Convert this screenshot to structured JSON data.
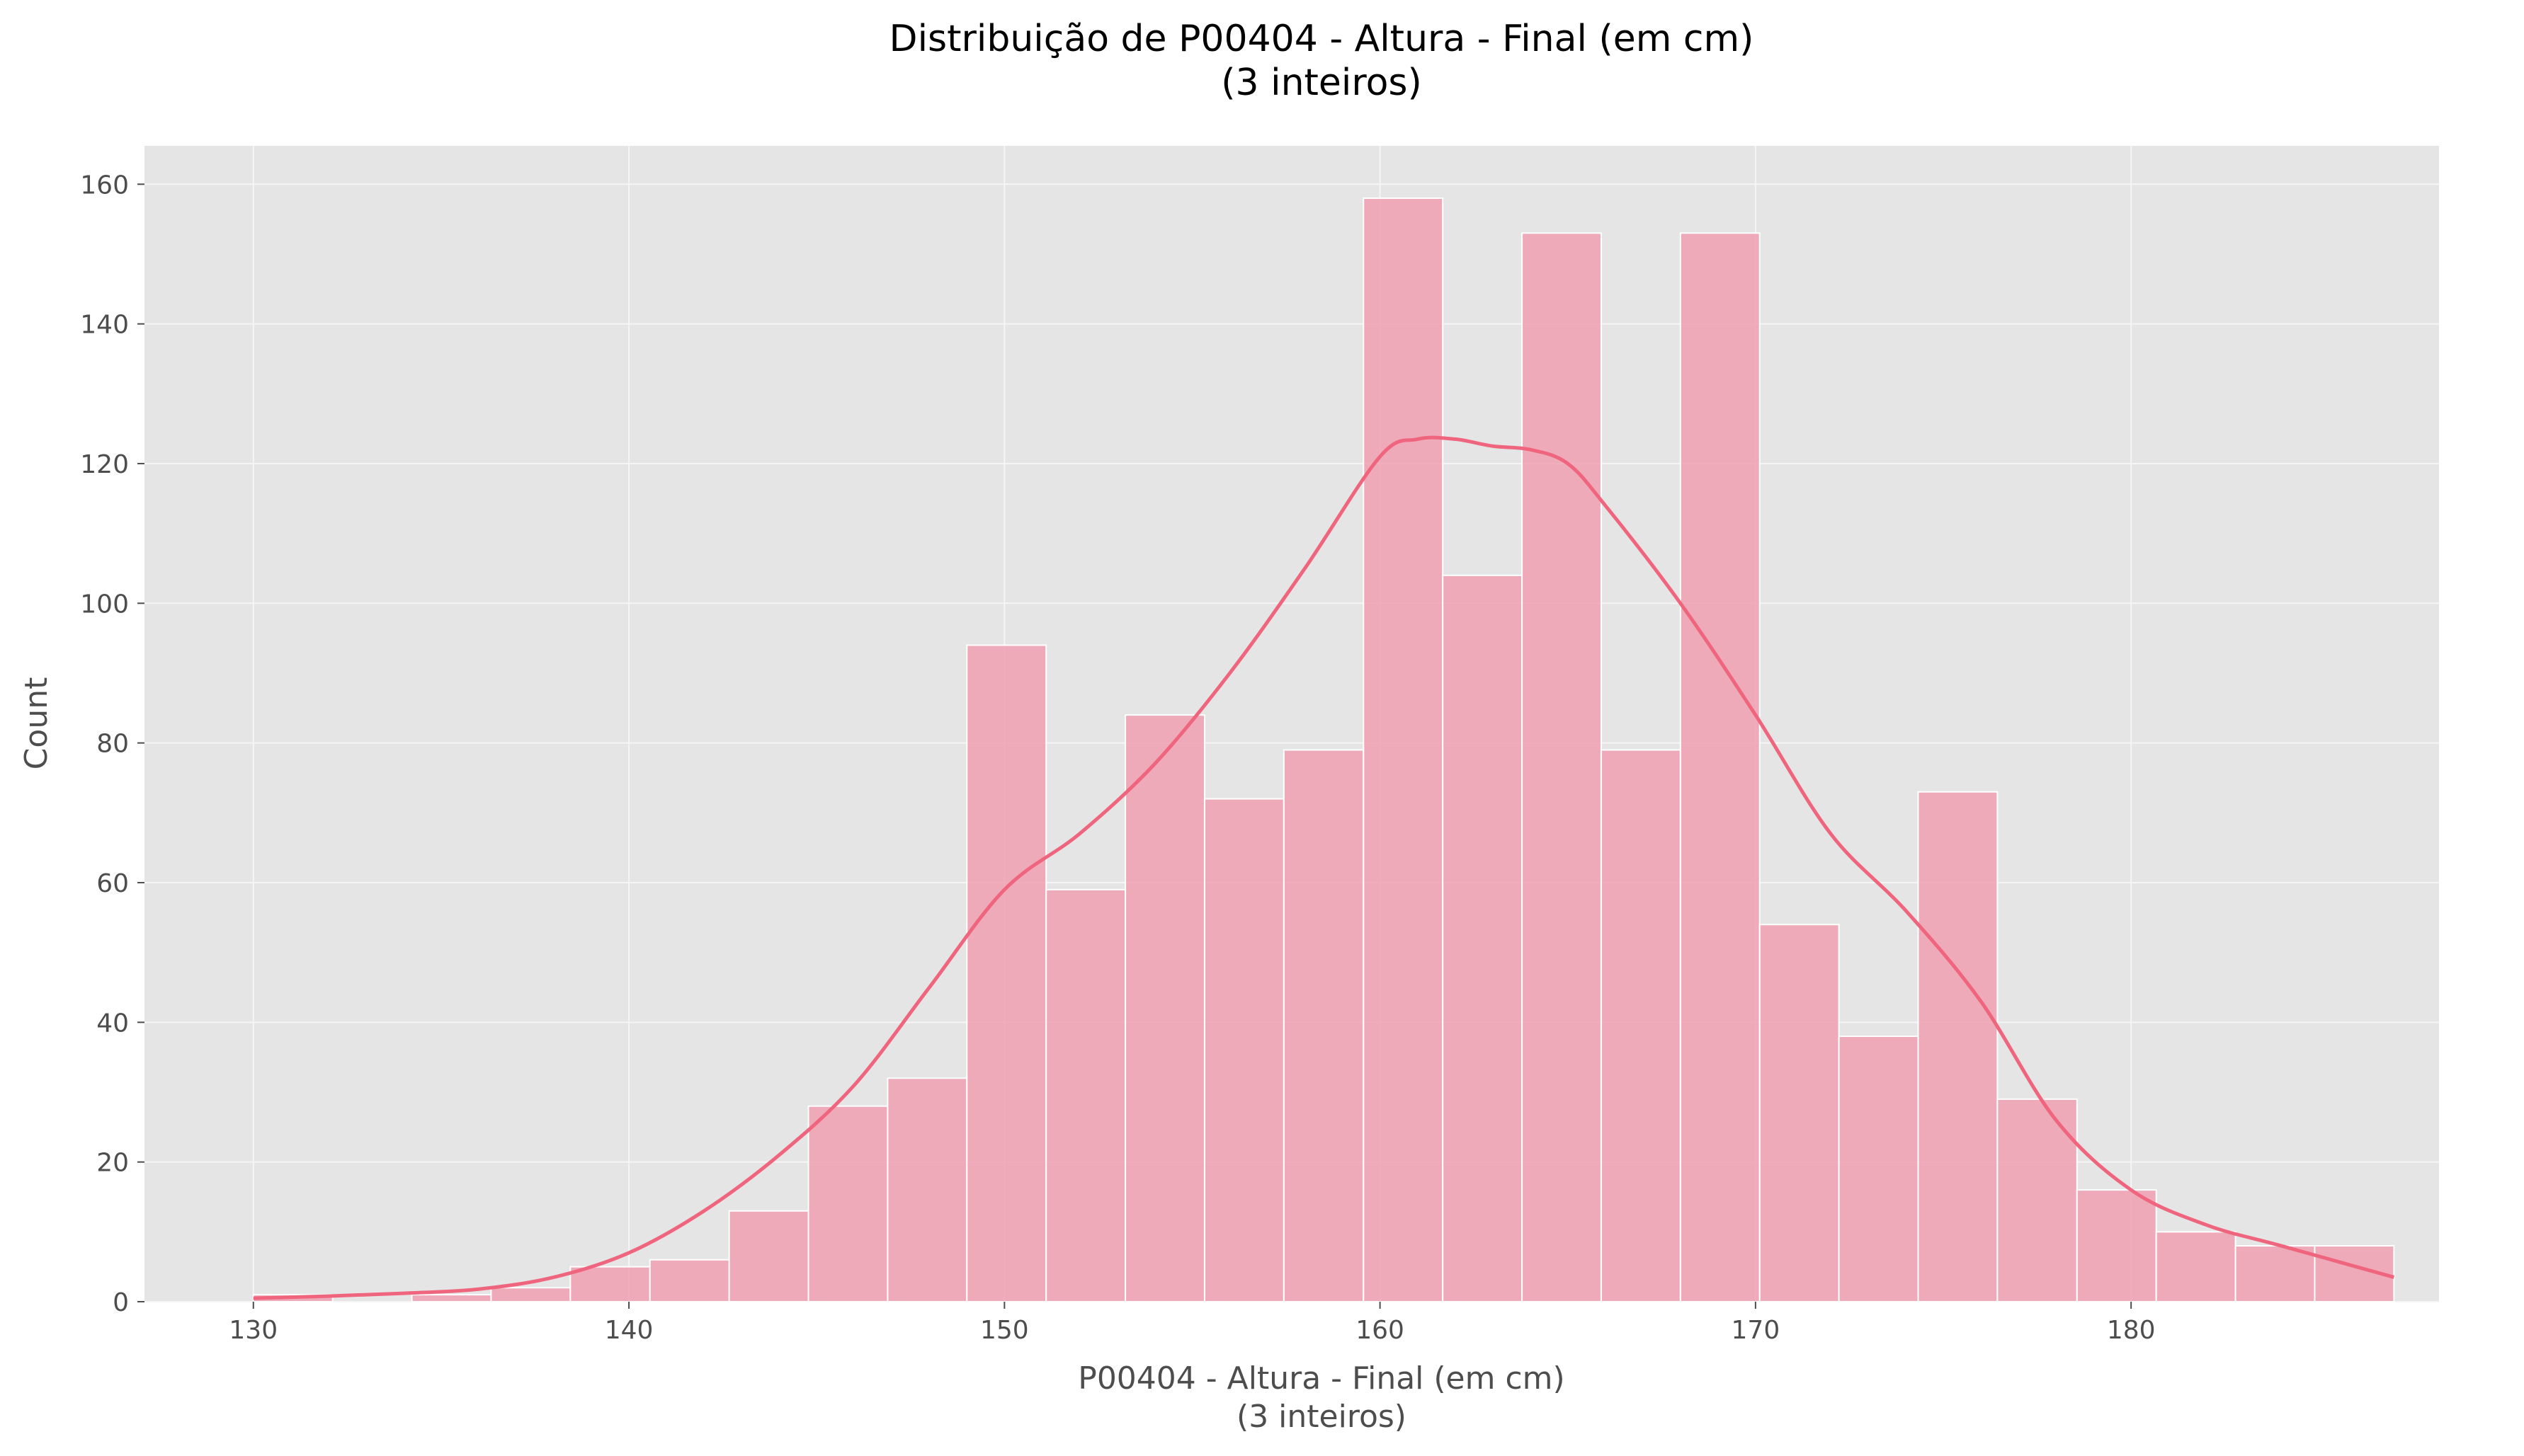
{
  "chart_data": {
    "type": "bar",
    "title_line1": "Distribuição de P00404 - Altura - Final (em cm)",
    "title_line2": "(3 inteiros)",
    "xlabel_line1": "P00404 - Altura - Final (em cm)",
    "xlabel_line2": "(3 inteiros)",
    "ylabel": "Count",
    "xlim": [
      127.1,
      188.2
    ],
    "ylim": [
      0,
      165.5
    ],
    "x_ticks": [
      130,
      140,
      150,
      160,
      170,
      180
    ],
    "y_ticks": [
      0,
      20,
      40,
      60,
      80,
      100,
      120,
      140,
      160
    ],
    "bin_edges": [
      130,
      132.11,
      134.22,
      136.33,
      138.44,
      140.56,
      142.67,
      144.78,
      146.89,
      149,
      151.11,
      153.22,
      155.33,
      157.44,
      159.56,
      161.67,
      163.78,
      165.89,
      168,
      170.11,
      172.22,
      174.33,
      176.44,
      178.56,
      180.67,
      182.78,
      184.89,
      187
    ],
    "counts": [
      1,
      0,
      1,
      2,
      5,
      6,
      13,
      28,
      32,
      94,
      59,
      84,
      72,
      79,
      158,
      104,
      153,
      79,
      153,
      54,
      38,
      73,
      29,
      16,
      10,
      8,
      8
    ],
    "kde": {
      "x": [
        130,
        132,
        134,
        136,
        138,
        140,
        142,
        144,
        146,
        148,
        150,
        152,
        154,
        156,
        158,
        160,
        161,
        162,
        163,
        164,
        165,
        166,
        168,
        170,
        172,
        174,
        176,
        178,
        180,
        182,
        184,
        187
      ],
      "y": [
        0.5,
        0.8,
        1.2,
        1.8,
        3.5,
        7,
        13,
        21,
        31,
        45,
        59,
        67,
        77,
        90,
        105,
        121,
        123.5,
        123.5,
        122.5,
        122,
        120,
        114,
        100,
        84,
        67,
        56,
        43,
        26,
        16,
        11,
        8,
        3.5
      ]
    },
    "grid": true,
    "colors": {
      "background": "#e5e5e5",
      "bar_fill": "#f0a0b0",
      "bar_edge": "#ffffff",
      "kde_line": "#f0657e",
      "grid": "#f5f5f5"
    }
  }
}
